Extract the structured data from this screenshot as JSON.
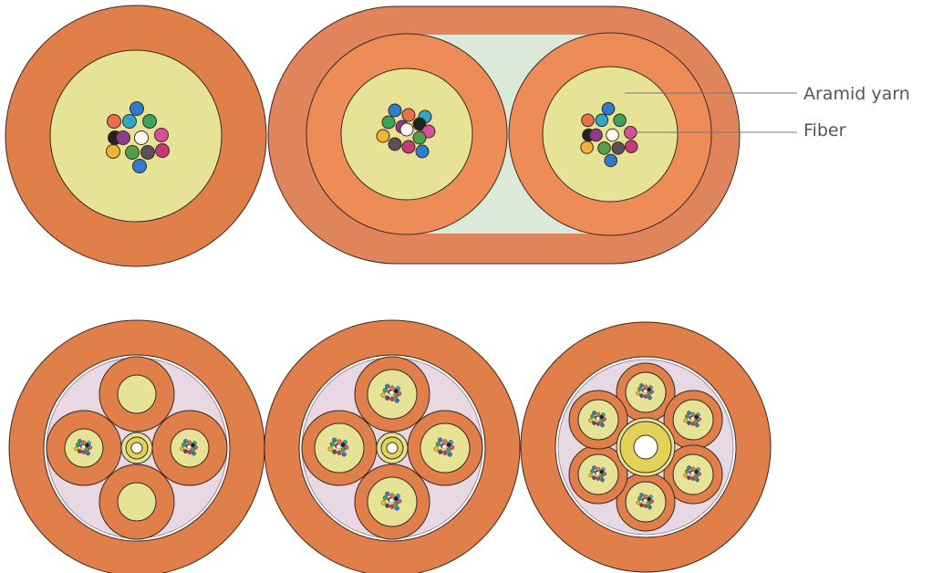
{
  "labels": {
    "aramid_yarn": "Aramid yarn",
    "fiber": "Fiber"
  },
  "colors": {
    "outer_jacket": "#e07f4a",
    "flat_jacket": "#e0845c",
    "tube": "#ee8c58",
    "aramid": "#e6e396",
    "filler": "#dbe9d8",
    "inner_sheath": "#e8d8e4",
    "central_member": "#e2d258",
    "outline": "#3a2a22",
    "leader": "#777777"
  },
  "fiber_colors": [
    "#2f7ccf",
    "#e8704a",
    "#2da8c9",
    "#3aa35e",
    "#222222",
    "#8f3a8c",
    "#fffaf0",
    "#d94e9a",
    "#f0b432",
    "#52a04a",
    "#5a505a",
    "#c43a78"
  ],
  "icons": {
    "cable_cross_section": "cable-cross-section-icon"
  }
}
